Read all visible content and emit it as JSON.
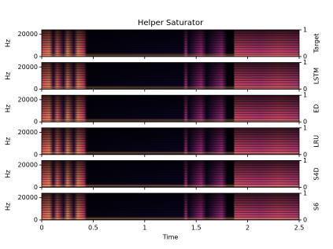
{
  "chart_data": [
    {
      "type": "heatmap",
      "title": "Helper Saturator",
      "ylabel": "Hz",
      "y2label": "Target",
      "ylim": [
        0,
        24000
      ],
      "yticks": [
        0,
        20000
      ],
      "y2lim": [
        0,
        1
      ],
      "y2ticks": [
        0,
        1
      ],
      "xlim": [
        0,
        2.5
      ]
    },
    {
      "type": "heatmap",
      "ylabel": "Hz",
      "y2label": "LSTM",
      "ylim": [
        0,
        24000
      ],
      "yticks": [
        0,
        20000
      ],
      "y2lim": [
        0,
        1
      ],
      "y2ticks": [
        0,
        1
      ],
      "xlim": [
        0,
        2.5
      ]
    },
    {
      "type": "heatmap",
      "ylabel": "Hz",
      "y2label": "ED",
      "ylim": [
        0,
        24000
      ],
      "yticks": [
        0,
        20000
      ],
      "y2lim": [
        0,
        1
      ],
      "y2ticks": [
        0,
        1
      ],
      "xlim": [
        0,
        2.5
      ]
    },
    {
      "type": "heatmap",
      "ylabel": "Hz",
      "y2label": "LRU",
      "ylim": [
        0,
        24000
      ],
      "yticks": [
        0,
        20000
      ],
      "y2lim": [
        0,
        1
      ],
      "y2ticks": [
        0,
        1
      ],
      "xlim": [
        0,
        2.5
      ]
    },
    {
      "type": "heatmap",
      "ylabel": "Hz",
      "y2label": "S4D",
      "ylim": [
        0,
        24000
      ],
      "yticks": [
        0,
        20000
      ],
      "y2lim": [
        0,
        1
      ],
      "y2ticks": [
        0,
        1
      ],
      "xlim": [
        0,
        2.5
      ]
    },
    {
      "type": "heatmap",
      "ylabel": "Hz",
      "y2label": "S6",
      "xlabel": "Time",
      "ylim": [
        0,
        24000
      ],
      "yticks": [
        0,
        20000
      ],
      "y2lim": [
        0,
        1
      ],
      "y2ticks": [
        0,
        1
      ],
      "xlim": [
        0,
        2.5
      ],
      "xticks": [
        0,
        0.5,
        1,
        1.5,
        2,
        2.5
      ]
    }
  ]
}
